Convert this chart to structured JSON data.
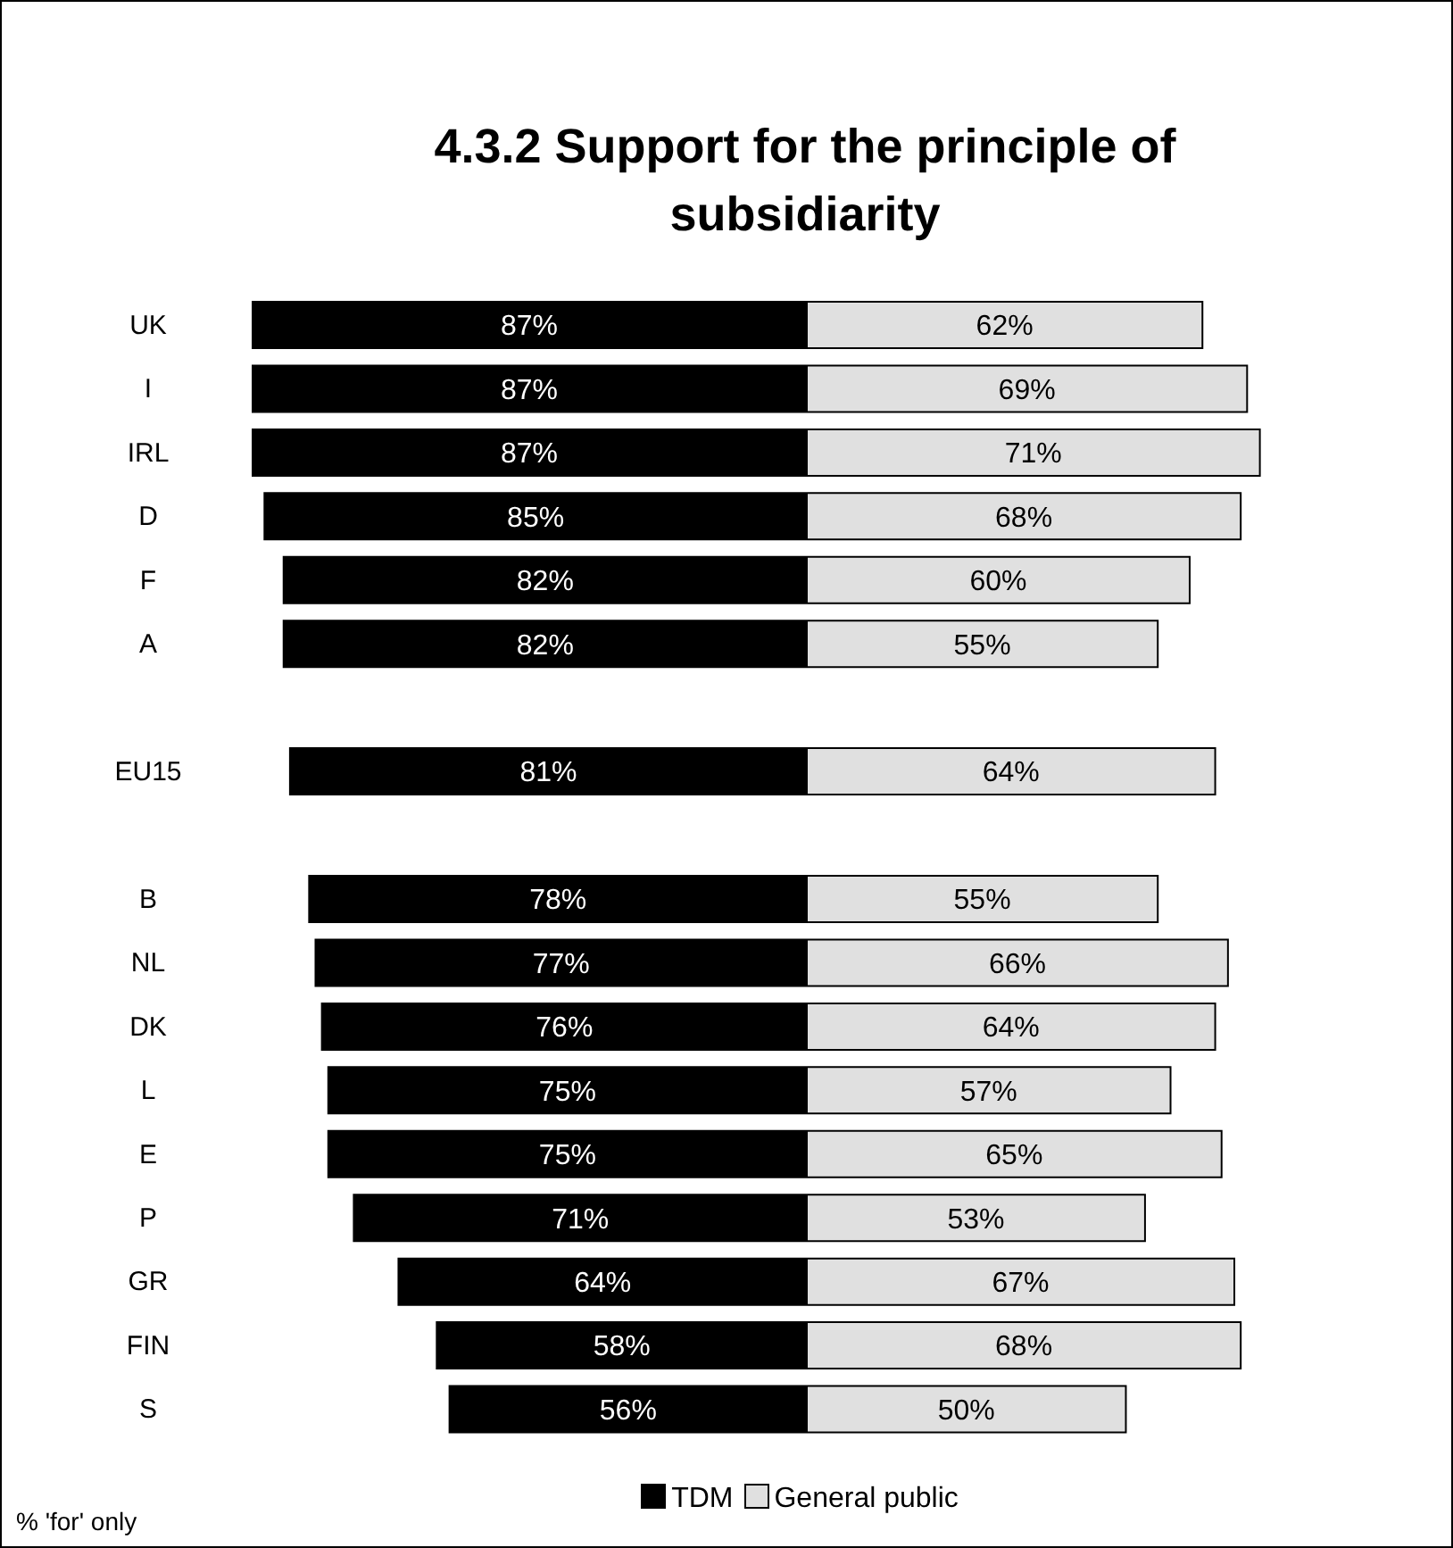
{
  "chart_data": [
    {
      "type": "bar",
      "orientation": "horizontal",
      "title": "4.3.2  Support for the principle of subsidiarity",
      "categories": [
        "UK",
        "I",
        "IRL",
        "D",
        "F",
        "A",
        null,
        "EU15",
        null,
        "B",
        "NL",
        "DK",
        "L",
        "E",
        "P",
        "GR",
        "FIN",
        "S"
      ],
      "series": [
        {
          "name": "TDM",
          "color": "#000000",
          "values": [
            87,
            87,
            87,
            85,
            82,
            82,
            null,
            81,
            null,
            78,
            77,
            76,
            75,
            75,
            71,
            64,
            58,
            56
          ],
          "value_labels": [
            "87%",
            "87%",
            "87%",
            "85%",
            "82%",
            "82%",
            null,
            "81%",
            null,
            "78%",
            "77%",
            "76%",
            "75%",
            "75%",
            "71%",
            "64%",
            "58%",
            "56%"
          ]
        }
      ],
      "legend": "bottom",
      "annotations": [
        "% 'for' only"
      ]
    },
    {
      "type": "bar",
      "orientation": "horizontal",
      "tick_labels": false,
      "categories": [
        null,
        null,
        null,
        null,
        null,
        null,
        null,
        null,
        null,
        null,
        null,
        null,
        null,
        null,
        null,
        null,
        null,
        null
      ],
      "series": [
        {
          "name": "General public",
          "color": "#e0e0e0",
          "values": [
            62,
            69,
            71,
            68,
            60,
            55,
            null,
            64,
            null,
            55,
            66,
            64,
            57,
            65,
            53,
            67,
            68,
            50
          ],
          "value_labels": [
            "62%",
            "69%",
            "71%",
            "68%",
            "60%",
            "55%",
            null,
            "64%",
            null,
            "55%",
            "66%",
            "64%",
            "57%",
            "65%",
            "53%",
            "67%",
            "68%",
            "50%"
          ]
        }
      ],
      "legend": "bottom"
    }
  ]
}
